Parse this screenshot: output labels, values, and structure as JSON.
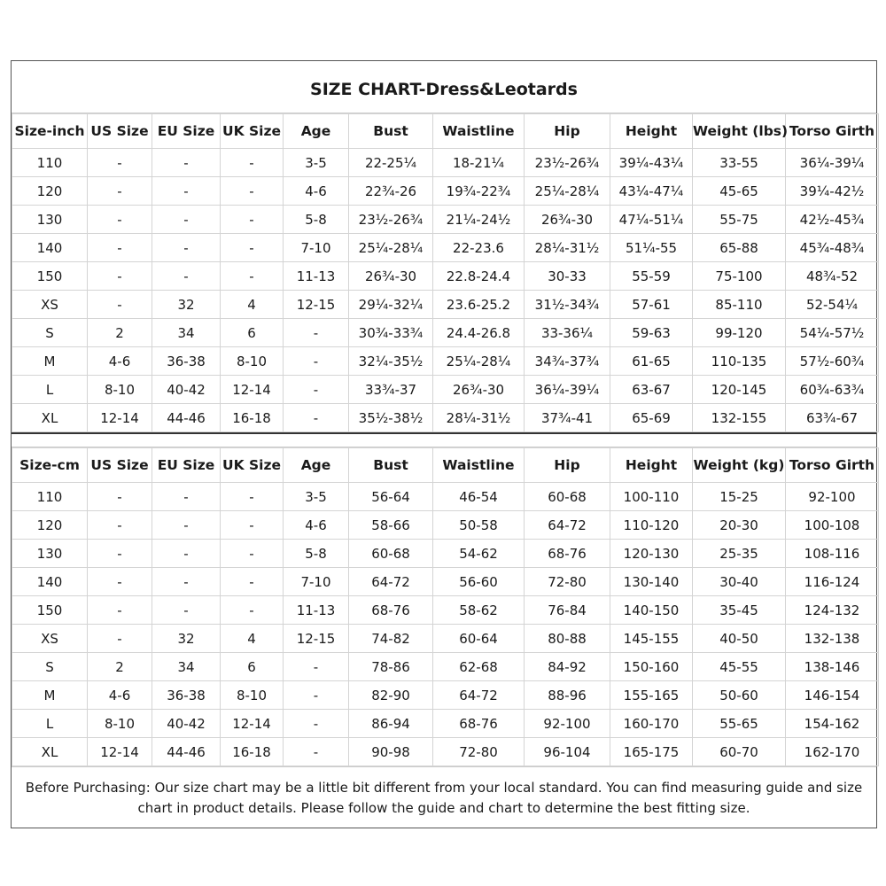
{
  "title": "SIZE CHART-Dress&Leotards",
  "inch_table": {
    "headers": [
      "Size-inch",
      "US Size",
      "EU Size",
      "UK Size",
      "Age",
      "Bust",
      "Waistline",
      "Hip",
      "Height",
      "Weight (lbs)",
      "Torso Girth"
    ],
    "rows": [
      [
        "110",
        "-",
        "-",
        "-",
        "3-5",
        "22-25¼",
        "18-21¼",
        "23½-26¾",
        "39¼-43¼",
        "33-55",
        "36¼-39¼"
      ],
      [
        "120",
        "-",
        "-",
        "-",
        "4-6",
        "22¾-26",
        "19¾-22¾",
        "25¼-28¼",
        "43¼-47¼",
        "45-65",
        "39¼-42½"
      ],
      [
        "130",
        "-",
        "-",
        "-",
        "5-8",
        "23½-26¾",
        "21¼-24½",
        "26¾-30",
        "47¼-51¼",
        "55-75",
        "42½-45¾"
      ],
      [
        "140",
        "-",
        "-",
        "-",
        "7-10",
        "25¼-28¼",
        "22-23.6",
        "28¼-31½",
        "51¼-55",
        "65-88",
        "45¾-48¾"
      ],
      [
        "150",
        "-",
        "-",
        "-",
        "11-13",
        "26¾-30",
        "22.8-24.4",
        "30-33",
        "55-59",
        "75-100",
        "48¾-52"
      ],
      [
        "XS",
        "-",
        "32",
        "4",
        "12-15",
        "29¼-32¼",
        "23.6-25.2",
        "31½-34¾",
        "57-61",
        "85-110",
        "52-54¼"
      ],
      [
        "S",
        "2",
        "34",
        "6",
        "-",
        "30¾-33¾",
        "24.4-26.8",
        "33-36¼",
        "59-63",
        "99-120",
        "54¼-57½"
      ],
      [
        "M",
        "4-6",
        "36-38",
        "8-10",
        "-",
        "32¼-35½",
        "25¼-28¼",
        "34¾-37¾",
        "61-65",
        "110-135",
        "57½-60¾"
      ],
      [
        "L",
        "8-10",
        "40-42",
        "12-14",
        "-",
        "33¾-37",
        "26¾-30",
        "36¼-39¼",
        "63-67",
        "120-145",
        "60¾-63¾"
      ],
      [
        "XL",
        "12-14",
        "44-46",
        "16-18",
        "-",
        "35½-38½",
        "28¼-31½",
        "37¾-41",
        "65-69",
        "132-155",
        "63¾-67"
      ]
    ]
  },
  "cm_table": {
    "headers": [
      "Size-cm",
      "US Size",
      "EU Size",
      "UK Size",
      "Age",
      "Bust",
      "Waistline",
      "Hip",
      "Height",
      "Weight (kg)",
      "Torso Girth"
    ],
    "rows": [
      [
        "110",
        "-",
        "-",
        "-",
        "3-5",
        "56-64",
        "46-54",
        "60-68",
        "100-110",
        "15-25",
        "92-100"
      ],
      [
        "120",
        "-",
        "-",
        "-",
        "4-6",
        "58-66",
        "50-58",
        "64-72",
        "110-120",
        "20-30",
        "100-108"
      ],
      [
        "130",
        "-",
        "-",
        "-",
        "5-8",
        "60-68",
        "54-62",
        "68-76",
        "120-130",
        "25-35",
        "108-116"
      ],
      [
        "140",
        "-",
        "-",
        "-",
        "7-10",
        "64-72",
        "56-60",
        "72-80",
        "130-140",
        "30-40",
        "116-124"
      ],
      [
        "150",
        "-",
        "-",
        "-",
        "11-13",
        "68-76",
        "58-62",
        "76-84",
        "140-150",
        "35-45",
        "124-132"
      ],
      [
        "XS",
        "-",
        "32",
        "4",
        "12-15",
        "74-82",
        "60-64",
        "80-88",
        "145-155",
        "40-50",
        "132-138"
      ],
      [
        "S",
        "2",
        "34",
        "6",
        "-",
        "78-86",
        "62-68",
        "84-92",
        "150-160",
        "45-55",
        "138-146"
      ],
      [
        "M",
        "4-6",
        "36-38",
        "8-10",
        "-",
        "82-90",
        "64-72",
        "88-96",
        "155-165",
        "50-60",
        "146-154"
      ],
      [
        "L",
        "8-10",
        "40-42",
        "12-14",
        "-",
        "86-94",
        "68-76",
        "92-100",
        "160-170",
        "55-65",
        "154-162"
      ],
      [
        "XL",
        "12-14",
        "44-46",
        "16-18",
        "-",
        "90-98",
        "72-80",
        "96-104",
        "165-175",
        "60-70",
        "162-170"
      ]
    ]
  },
  "note": "Before Purchasing: Our size chart may be a little bit different from your local standard. You can find measuring guide and size chart in product details. Please follow the guide and chart to determine the best fitting size."
}
